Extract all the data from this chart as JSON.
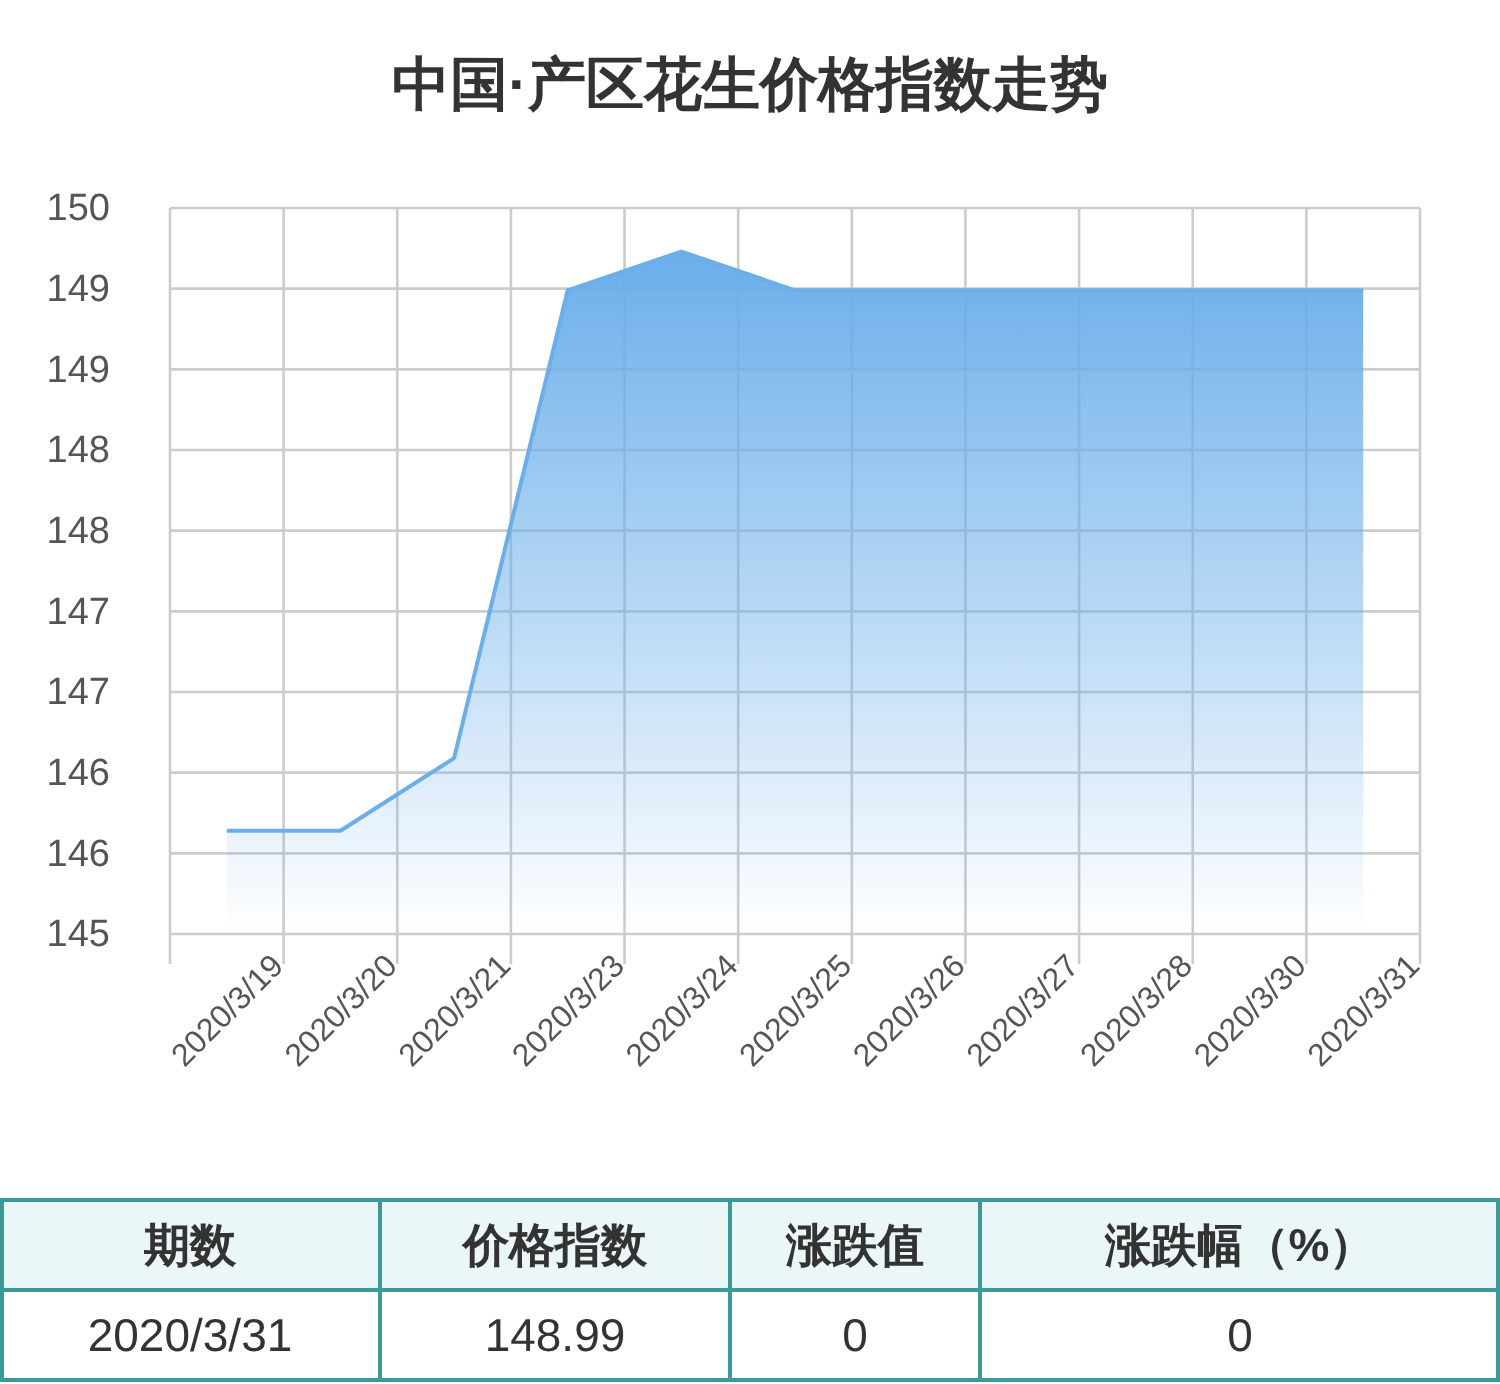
{
  "chart_data": {
    "type": "area",
    "title": "中国·产区花生价格指数走势",
    "categories": [
      "2020/3/19",
      "2020/3/20",
      "2020/3/21",
      "2020/3/23",
      "2020/3/24",
      "2020/3/25",
      "2020/3/26",
      "2020/3/27",
      "2020/3/28",
      "2020/3/30",
      "2020/3/31"
    ],
    "series": [
      {
        "color": "#6aaeea",
        "values": [
          145.64,
          145.64,
          146.09,
          148.99,
          149.23,
          148.99,
          148.99,
          148.99,
          148.99,
          148.99,
          148.99
        ]
      }
    ],
    "ylim": [
      145,
      149.5
    ],
    "yticks": [
      {
        "value": 145,
        "label": "145"
      },
      {
        "value": 145.5,
        "label": "146"
      },
      {
        "value": 146,
        "label": "146"
      },
      {
        "value": 146.5,
        "label": "147"
      },
      {
        "value": 147,
        "label": "147"
      },
      {
        "value": 147.5,
        "label": "148"
      },
      {
        "value": 148,
        "label": "148"
      },
      {
        "value": 148.5,
        "label": "149"
      },
      {
        "value": 149,
        "label": "149"
      },
      {
        "value": 149.5,
        "label": "150"
      }
    ],
    "grid": true,
    "annotations": [
      "期数",
      "价格指数",
      "涨跌值",
      "涨跌幅（%）",
      "2020/3/31",
      "148.99",
      "0",
      "0"
    ]
  }
}
